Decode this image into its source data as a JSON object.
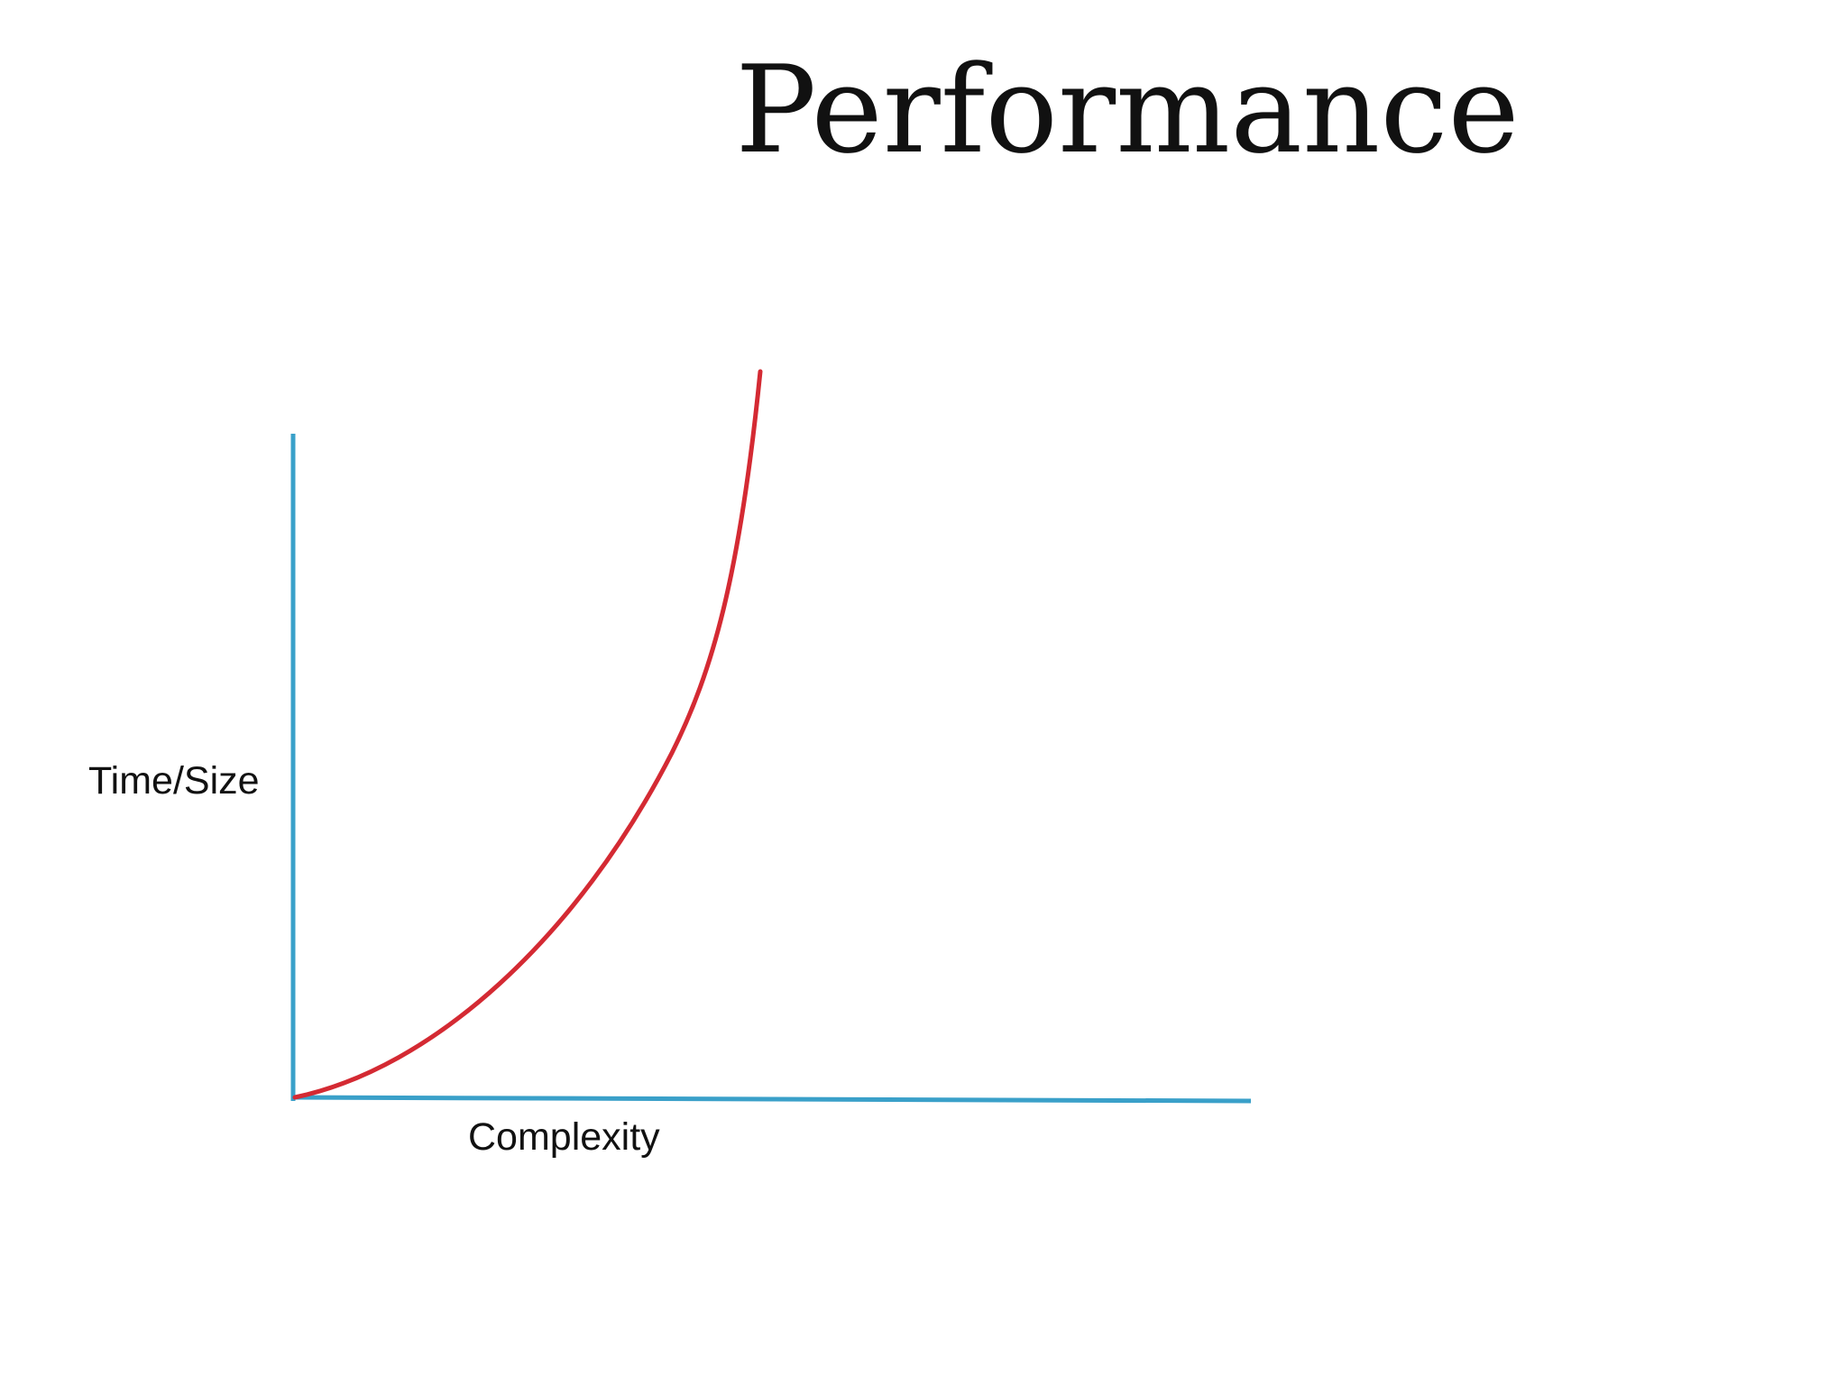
{
  "slide": {
    "title": "Performance"
  },
  "diagram": {
    "y_axis_label": "Time/Size",
    "x_axis_label": "Complexity",
    "colors": {
      "axis": "#3aa0c9",
      "curve": "#d42a33",
      "text": "#111111",
      "background": "#ffffff"
    }
  }
}
